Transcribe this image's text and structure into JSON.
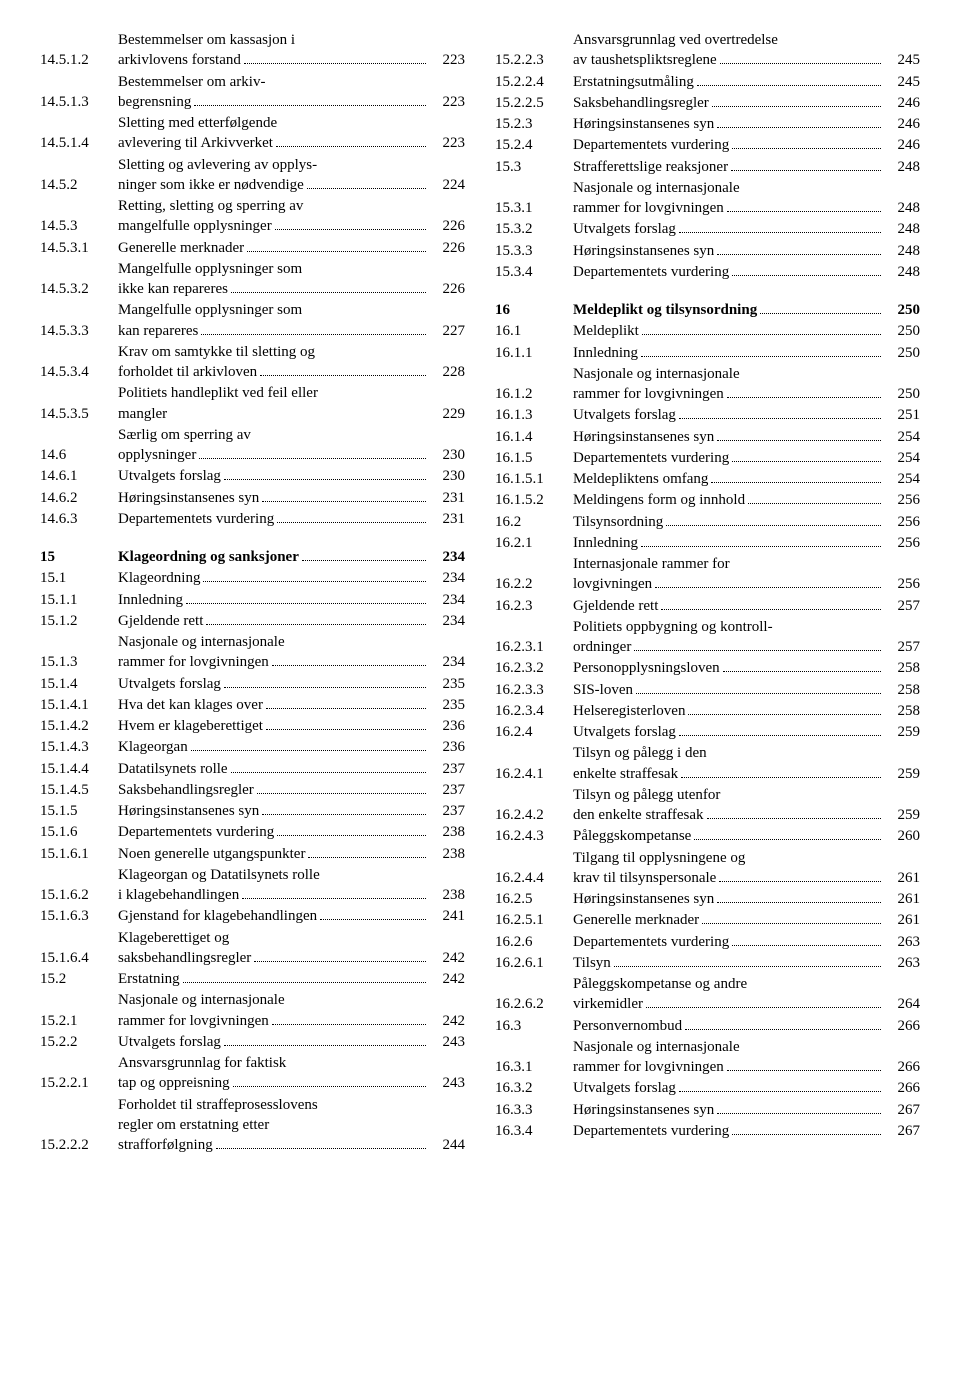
{
  "left": [
    {
      "num": "14.5.1.2",
      "lines": [
        "Bestemmelser om kassasjon i",
        "arkivlovens forstand"
      ],
      "page": "223"
    },
    {
      "num": "14.5.1.3",
      "lines": [
        "Bestemmelser om arkiv-",
        "begrensning"
      ],
      "page": "223"
    },
    {
      "num": "14.5.1.4",
      "lines": [
        "Sletting med etterfølgende",
        "avlevering til Arkivverket"
      ],
      "page": "223"
    },
    {
      "num": "14.5.2",
      "lines": [
        "Sletting og avlevering av opplys-",
        "ninger som ikke er nødvendige"
      ],
      "page": "224"
    },
    {
      "num": "14.5.3",
      "lines": [
        "Retting, sletting og sperring av",
        "mangelfulle opplysninger"
      ],
      "page": "226"
    },
    {
      "num": "14.5.3.1",
      "lines": [
        "Generelle merknader"
      ],
      "page": "226"
    },
    {
      "num": "14.5.3.2",
      "lines": [
        "Mangelfulle opplysninger som",
        "ikke kan repareres"
      ],
      "page": "226"
    },
    {
      "num": "14.5.3.3",
      "lines": [
        "Mangelfulle opplysninger som",
        "kan repareres"
      ],
      "page": "227"
    },
    {
      "num": "14.5.3.4",
      "lines": [
        "Krav om samtykke til sletting og",
        "forholdet til arkivloven"
      ],
      "page": "228"
    },
    {
      "num": "14.5.3.5",
      "lines": [
        "Politiets handleplikt ved feil eller",
        "mangler"
      ],
      "page": "229",
      "nodots": true
    },
    {
      "num": "14.6",
      "lines": [
        "Særlig om sperring av",
        "opplysninger"
      ],
      "page": "230"
    },
    {
      "num": "14.6.1",
      "lines": [
        "Utvalgets forslag"
      ],
      "page": "230"
    },
    {
      "num": "14.6.2",
      "lines": [
        "Høringsinstansenes syn"
      ],
      "page": "231"
    },
    {
      "num": "14.6.3",
      "lines": [
        "Departementets vurdering"
      ],
      "page": "231"
    },
    {
      "spacer": true
    },
    {
      "num": "15",
      "lines": [
        "Klageordning og sanksjoner"
      ],
      "page": "234",
      "bold": true
    },
    {
      "num": "15.1",
      "lines": [
        "Klageordning"
      ],
      "page": "234"
    },
    {
      "num": "15.1.1",
      "lines": [
        "Innledning"
      ],
      "page": "234"
    },
    {
      "num": "15.1.2",
      "lines": [
        "Gjeldende rett"
      ],
      "page": "234"
    },
    {
      "num": "15.1.3",
      "lines": [
        "Nasjonale og internasjonale",
        "rammer for lovgivningen"
      ],
      "page": "234"
    },
    {
      "num": "15.1.4",
      "lines": [
        "Utvalgets forslag"
      ],
      "page": "235"
    },
    {
      "num": "15.1.4.1",
      "lines": [
        "Hva det kan klages over"
      ],
      "page": "235"
    },
    {
      "num": "15.1.4.2",
      "lines": [
        "Hvem er klageberettiget"
      ],
      "page": "236"
    },
    {
      "num": "15.1.4.3",
      "lines": [
        "Klageorgan"
      ],
      "page": "236"
    },
    {
      "num": "15.1.4.4",
      "lines": [
        "Datatilsynets rolle"
      ],
      "page": "237"
    },
    {
      "num": "15.1.4.5",
      "lines": [
        "Saksbehandlingsregler"
      ],
      "page": "237"
    },
    {
      "num": "15.1.5",
      "lines": [
        "Høringsinstansenes syn"
      ],
      "page": "237"
    },
    {
      "num": "15.1.6",
      "lines": [
        "Departementets vurdering"
      ],
      "page": "238"
    },
    {
      "num": "15.1.6.1",
      "lines": [
        "Noen generelle utgangspunkter"
      ],
      "page": "238"
    },
    {
      "num": "15.1.6.2",
      "lines": [
        "Klageorgan og Datatilsynets rolle",
        "i klagebehandlingen"
      ],
      "page": "238"
    },
    {
      "num": "15.1.6.3",
      "lines": [
        "Gjenstand for klagebehandlingen"
      ],
      "page": "241"
    },
    {
      "num": "15.1.6.4",
      "lines": [
        "Klageberettiget og",
        "saksbehandlingsregler"
      ],
      "page": "242"
    },
    {
      "num": "15.2",
      "lines": [
        "Erstatning"
      ],
      "page": "242"
    },
    {
      "num": "15.2.1",
      "lines": [
        "Nasjonale og internasjonale",
        "rammer for lovgivningen"
      ],
      "page": "242"
    },
    {
      "num": "15.2.2",
      "lines": [
        "Utvalgets forslag"
      ],
      "page": "243"
    },
    {
      "num": "15.2.2.1",
      "lines": [
        "Ansvarsgrunnlag for faktisk",
        "tap og oppreisning"
      ],
      "page": "243"
    },
    {
      "num": "15.2.2.2",
      "lines": [
        "Forholdet til straffeprosesslovens",
        "regler om erstatning etter",
        "strafforfølgning"
      ],
      "page": "244"
    }
  ],
  "right": [
    {
      "num": "15.2.2.3",
      "lines": [
        "Ansvarsgrunnlag ved overtredelse",
        "av taushetspliktsreglene"
      ],
      "page": "245"
    },
    {
      "num": "15.2.2.4",
      "lines": [
        "Erstatningsutmåling"
      ],
      "page": "245"
    },
    {
      "num": "15.2.2.5",
      "lines": [
        "Saksbehandlingsregler"
      ],
      "page": "246"
    },
    {
      "num": "15.2.3",
      "lines": [
        "Høringsinstansenes syn"
      ],
      "page": "246"
    },
    {
      "num": "15.2.4",
      "lines": [
        "Departementets vurdering"
      ],
      "page": "246"
    },
    {
      "num": "15.3",
      "lines": [
        "Strafferettslige reaksjoner"
      ],
      "page": "248"
    },
    {
      "num": "15.3.1",
      "lines": [
        "Nasjonale og internasjonale",
        "rammer for lovgivningen"
      ],
      "page": "248"
    },
    {
      "num": "15.3.2",
      "lines": [
        "Utvalgets forslag"
      ],
      "page": "248"
    },
    {
      "num": "15.3.3",
      "lines": [
        "Høringsinstansenes syn"
      ],
      "page": "248"
    },
    {
      "num": "15.3.4",
      "lines": [
        "Departementets vurdering"
      ],
      "page": "248"
    },
    {
      "spacer": true
    },
    {
      "num": "16",
      "lines": [
        "Meldeplikt og tilsynsordning"
      ],
      "page": "250",
      "bold": true
    },
    {
      "num": "16.1",
      "lines": [
        "Meldeplikt"
      ],
      "page": "250"
    },
    {
      "num": "16.1.1",
      "lines": [
        "Innledning"
      ],
      "page": "250"
    },
    {
      "num": "16.1.2",
      "lines": [
        "Nasjonale og internasjonale",
        "rammer for lovgivningen"
      ],
      "page": "250"
    },
    {
      "num": "16.1.3",
      "lines": [
        "Utvalgets forslag"
      ],
      "page": "251"
    },
    {
      "num": "16.1.4",
      "lines": [
        "Høringsinstansenes syn"
      ],
      "page": "254"
    },
    {
      "num": "16.1.5",
      "lines": [
        "Departementets vurdering"
      ],
      "page": "254"
    },
    {
      "num": "16.1.5.1",
      "lines": [
        "Meldepliktens omfang"
      ],
      "page": "254"
    },
    {
      "num": "16.1.5.2",
      "lines": [
        "Meldingens form og innhold"
      ],
      "page": "256"
    },
    {
      "num": "16.2",
      "lines": [
        "Tilsynsordning"
      ],
      "page": "256"
    },
    {
      "num": "16.2.1",
      "lines": [
        "Innledning"
      ],
      "page": "256"
    },
    {
      "num": "16.2.2",
      "lines": [
        "Internasjonale rammer for",
        "lovgivningen"
      ],
      "page": "256"
    },
    {
      "num": "16.2.3",
      "lines": [
        "Gjeldende rett"
      ],
      "page": "257"
    },
    {
      "num": "16.2.3.1",
      "lines": [
        "Politiets oppbygning og kontroll-",
        "ordninger"
      ],
      "page": "257"
    },
    {
      "num": "16.2.3.2",
      "lines": [
        "Personopplysningsloven"
      ],
      "page": "258"
    },
    {
      "num": "16.2.3.3",
      "lines": [
        "SIS-loven"
      ],
      "page": "258"
    },
    {
      "num": "16.2.3.4",
      "lines": [
        "Helseregisterloven"
      ],
      "page": "258"
    },
    {
      "num": "16.2.4",
      "lines": [
        "Utvalgets forslag"
      ],
      "page": "259"
    },
    {
      "num": "16.2.4.1",
      "lines": [
        "Tilsyn og pålegg i den",
        "enkelte straffesak"
      ],
      "page": "259"
    },
    {
      "num": "16.2.4.2",
      "lines": [
        "Tilsyn og pålegg utenfor",
        "den enkelte straffesak"
      ],
      "page": "259"
    },
    {
      "num": "16.2.4.3",
      "lines": [
        "Påleggskompetanse"
      ],
      "page": "260"
    },
    {
      "num": "16.2.4.4",
      "lines": [
        "Tilgang til opplysningene og",
        "krav til tilsynspersonale"
      ],
      "page": "261"
    },
    {
      "num": "16.2.5",
      "lines": [
        "Høringsinstansenes syn"
      ],
      "page": "261"
    },
    {
      "num": "16.2.5.1",
      "lines": [
        "Generelle merknader"
      ],
      "page": "261"
    },
    {
      "num": "16.2.6",
      "lines": [
        "Departementets vurdering"
      ],
      "page": "263"
    },
    {
      "num": "16.2.6.1",
      "lines": [
        "Tilsyn"
      ],
      "page": "263"
    },
    {
      "num": "16.2.6.2",
      "lines": [
        "Påleggskompetanse og andre",
        "virkemidler"
      ],
      "page": "264"
    },
    {
      "num": "16.3",
      "lines": [
        "Personvernombud"
      ],
      "page": "266"
    },
    {
      "num": "16.3.1",
      "lines": [
        "Nasjonale og internasjonale",
        "rammer for lovgivningen"
      ],
      "page": "266"
    },
    {
      "num": "16.3.2",
      "lines": [
        "Utvalgets forslag"
      ],
      "page": "266"
    },
    {
      "num": "16.3.3",
      "lines": [
        "Høringsinstansenes syn"
      ],
      "page": "267"
    },
    {
      "num": "16.3.4",
      "lines": [
        "Departementets vurdering"
      ],
      "page": "267"
    }
  ]
}
